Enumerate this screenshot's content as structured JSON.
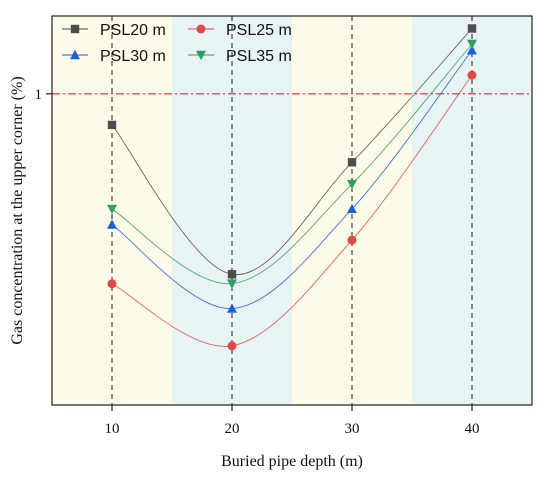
{
  "chart_data": {
    "type": "line",
    "xlabel": "Buried pipe depth (m)",
    "ylabel": "Gas concentration at the upper corner (%)",
    "x": [
      10,
      20,
      30,
      40
    ],
    "x_ticks": [
      "10",
      "20",
      "30",
      "40"
    ],
    "xlim": [
      5,
      45
    ],
    "y_ticks": [
      "1"
    ],
    "ylim": [
      0,
      1.25
    ],
    "reference_line": {
      "y": 1,
      "color": "#d62728",
      "style": "dash-dot"
    },
    "background_bands": [
      {
        "from": 5,
        "to": 15,
        "color": "#fefce8"
      },
      {
        "from": 15,
        "to": 25,
        "color": "#e8f3f3"
      },
      {
        "from": 25,
        "to": 35,
        "color": "#fefce8"
      },
      {
        "from": 35,
        "to": 45,
        "color": "#e8f3f3"
      }
    ],
    "vertical_guides": [
      10,
      20,
      30,
      40
    ],
    "series": [
      {
        "name": "PSL20 m",
        "marker": "square",
        "color": "#4d4d4d",
        "values": [
          0.9,
          0.42,
          0.78,
          1.21
        ]
      },
      {
        "name": "PSL25 m",
        "marker": "circle",
        "color": "#e04848",
        "values": [
          0.39,
          0.19,
          0.53,
          1.06
        ]
      },
      {
        "name": "PSL30 m",
        "marker": "triangle-up",
        "color": "#1f5fd6",
        "values": [
          0.58,
          0.31,
          0.63,
          1.14
        ]
      },
      {
        "name": "PSL35 m",
        "marker": "triangle-down",
        "color": "#2e9e62",
        "values": [
          0.63,
          0.39,
          0.71,
          1.16
        ]
      }
    ],
    "legend": {
      "position": "top-left",
      "columns": 2
    },
    "grid": false
  }
}
